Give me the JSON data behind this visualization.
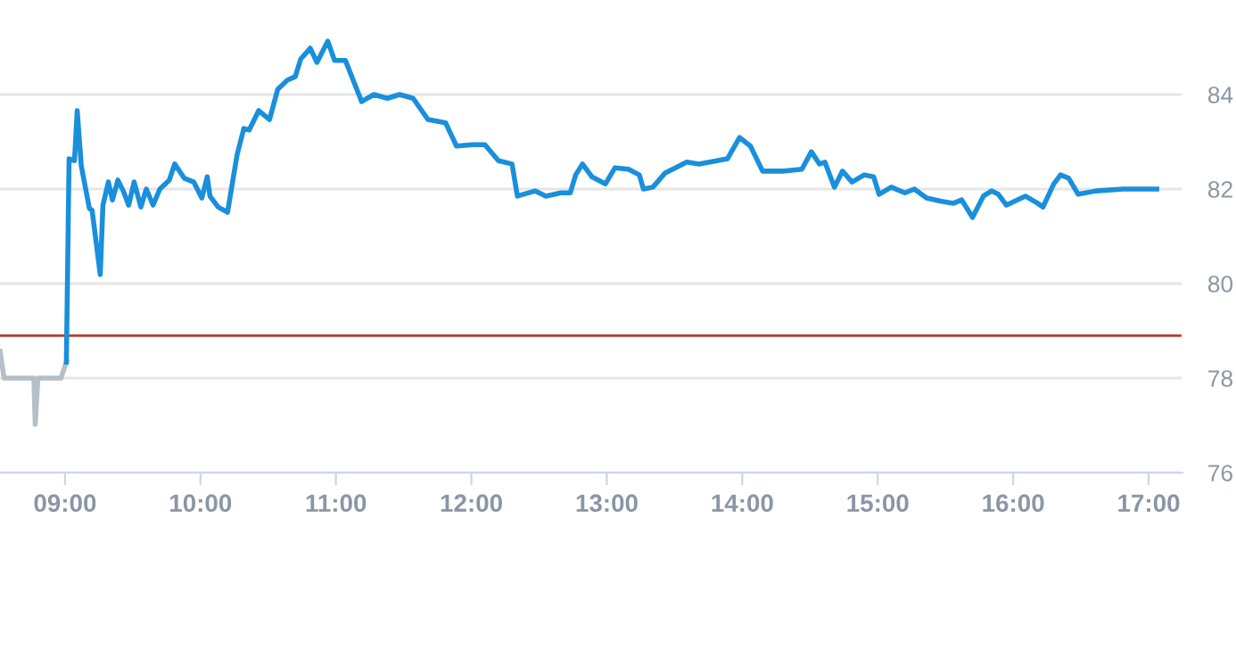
{
  "chart_data": {
    "type": "line",
    "xlim": [
      8.52,
      17.25
    ],
    "ylim": [
      76,
      86
    ],
    "xticks": [
      {
        "value": 9,
        "label": "09:00"
      },
      {
        "value": 10,
        "label": "10:00"
      },
      {
        "value": 11,
        "label": "11:00"
      },
      {
        "value": 12,
        "label": "12:00"
      },
      {
        "value": 13,
        "label": "13:00"
      },
      {
        "value": 14,
        "label": "14:00"
      },
      {
        "value": 15,
        "label": "15:00"
      },
      {
        "value": 16,
        "label": "16:00"
      },
      {
        "value": 17,
        "label": "17:00"
      }
    ],
    "yticks": [
      76,
      78,
      80,
      82,
      84
    ],
    "grid": "y",
    "legend": false,
    "marker": "none",
    "line_style": "solid",
    "ref_lines": [
      {
        "axis": "y",
        "value": 78.9,
        "color": "#c0392b"
      }
    ],
    "series": [
      {
        "color": "#b4bfc8",
        "x": [
          8.52,
          8.55,
          8.77,
          8.78,
          8.8,
          8.97,
          9.01
        ],
        "values": [
          78.57,
          78.0,
          78.0,
          77.02,
          78.0,
          78.0,
          78.34
        ]
      },
      {
        "color": "#1a8fdc",
        "x": [
          9.01,
          9.03,
          9.07,
          9.09,
          9.12,
          9.18,
          9.2,
          9.26,
          9.28,
          9.32,
          9.35,
          9.39,
          9.43,
          9.47,
          9.51,
          9.56,
          9.6,
          9.65,
          9.7,
          9.77,
          9.81,
          9.88,
          9.95,
          10.01,
          10.05,
          10.07,
          10.13,
          10.2,
          10.27,
          10.32,
          10.36,
          10.43,
          10.51,
          10.57,
          10.64,
          10.7,
          10.74,
          10.81,
          10.86,
          10.94,
          10.99,
          11.07,
          11.19,
          11.28,
          11.38,
          11.47,
          11.57,
          11.68,
          11.81,
          11.89,
          12.01,
          12.1,
          12.2,
          12.3,
          12.34,
          12.47,
          12.55,
          12.66,
          12.73,
          12.77,
          12.82,
          12.89,
          12.99,
          13.06,
          13.16,
          13.24,
          13.27,
          13.34,
          13.43,
          13.59,
          13.68,
          13.89,
          13.98,
          14.06,
          14.15,
          14.31,
          14.44,
          14.51,
          14.57,
          14.61,
          14.68,
          14.74,
          14.81,
          14.9,
          14.97,
          15.01,
          15.1,
          15.2,
          15.27,
          15.36,
          15.47,
          15.56,
          15.62,
          15.7,
          15.78,
          15.84,
          15.89,
          15.95,
          16.09,
          16.18,
          16.22,
          16.3,
          16.35,
          16.41,
          16.48,
          16.61,
          16.81,
          17.06
        ],
        "values": [
          78.34,
          82.64,
          82.6,
          83.66,
          82.49,
          81.59,
          81.55,
          80.19,
          81.66,
          82.15,
          81.77,
          82.19,
          81.96,
          81.66,
          82.15,
          81.62,
          82.0,
          81.66,
          82.0,
          82.19,
          82.53,
          82.23,
          82.15,
          81.81,
          82.26,
          81.85,
          81.62,
          81.51,
          82.72,
          83.28,
          83.25,
          83.66,
          83.47,
          84.11,
          84.3,
          84.38,
          84.75,
          84.98,
          84.68,
          85.13,
          84.72,
          84.72,
          83.85,
          84.0,
          83.92,
          84.0,
          83.92,
          83.47,
          83.4,
          82.91,
          82.94,
          82.94,
          82.6,
          82.53,
          81.85,
          81.96,
          81.85,
          81.92,
          81.92,
          82.3,
          82.53,
          82.26,
          82.11,
          82.45,
          82.42,
          82.3,
          82.0,
          82.04,
          82.34,
          82.57,
          82.53,
          82.64,
          83.09,
          82.91,
          82.38,
          82.38,
          82.42,
          82.79,
          82.53,
          82.57,
          82.04,
          82.38,
          82.15,
          82.3,
          82.26,
          81.89,
          82.04,
          81.92,
          82.0,
          81.81,
          81.74,
          81.7,
          81.77,
          81.4,
          81.85,
          81.96,
          81.89,
          81.66,
          81.85,
          81.7,
          81.62,
          82.11,
          82.3,
          82.23,
          81.89,
          81.96,
          82.0,
          82.0
        ]
      }
    ]
  }
}
